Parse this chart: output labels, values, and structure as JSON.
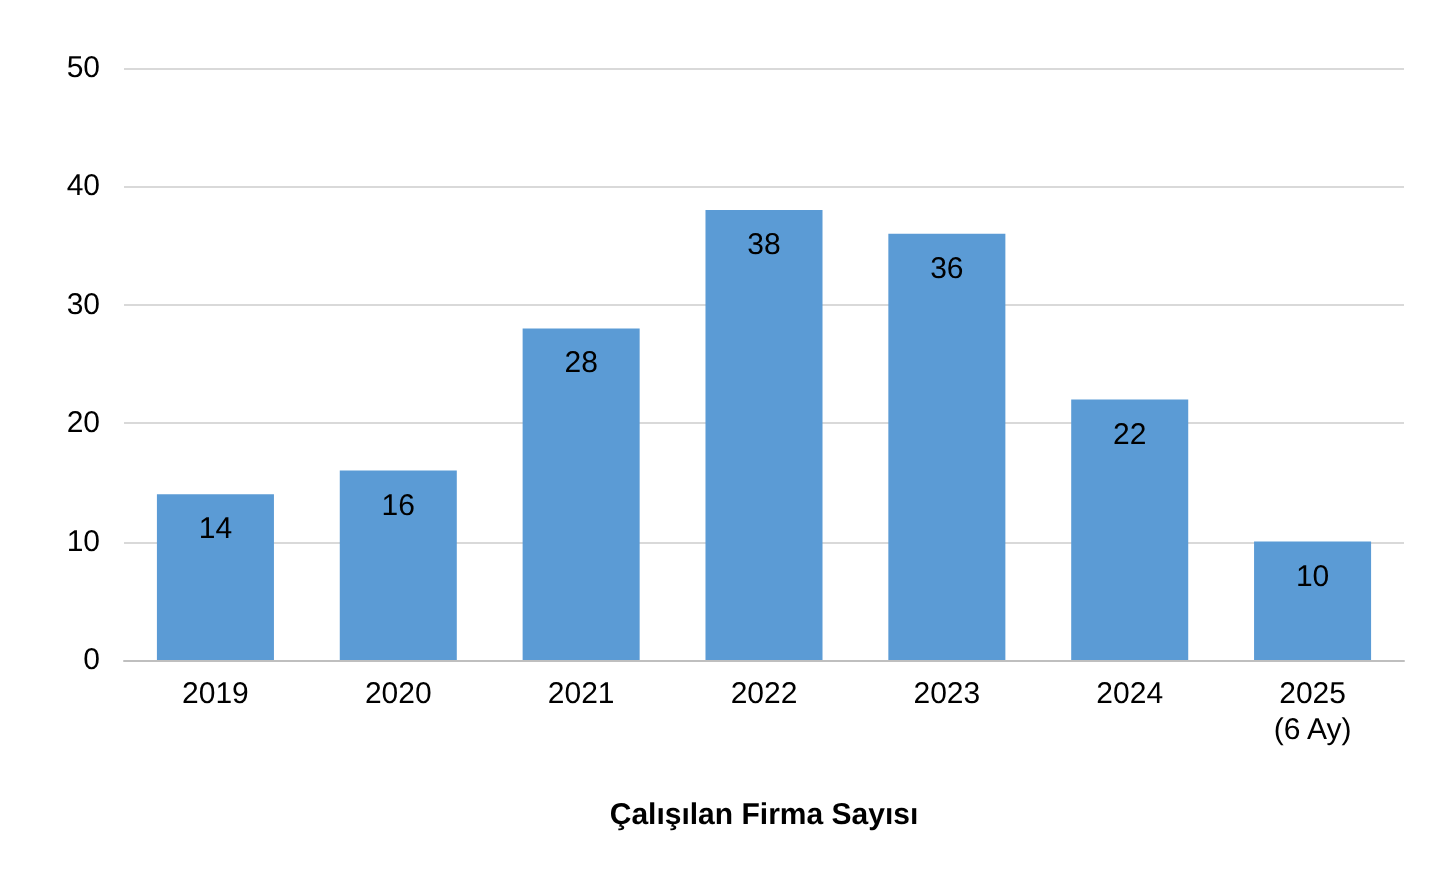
{
  "chart_data": {
    "type": "bar",
    "xlabel": "Çalışılan Firma Sayısı",
    "categories": [
      "2019",
      "2020",
      "2021",
      "2022",
      "2023",
      "2024",
      "2025\n(6 Ay)"
    ],
    "values": [
      14,
      16,
      28,
      38,
      36,
      22,
      10
    ],
    "color": "#5b9bd5",
    "ylim": [
      0,
      50
    ],
    "yticks": [
      0,
      10,
      20,
      30,
      40,
      50
    ],
    "grid": "y",
    "data_labels": true
  }
}
